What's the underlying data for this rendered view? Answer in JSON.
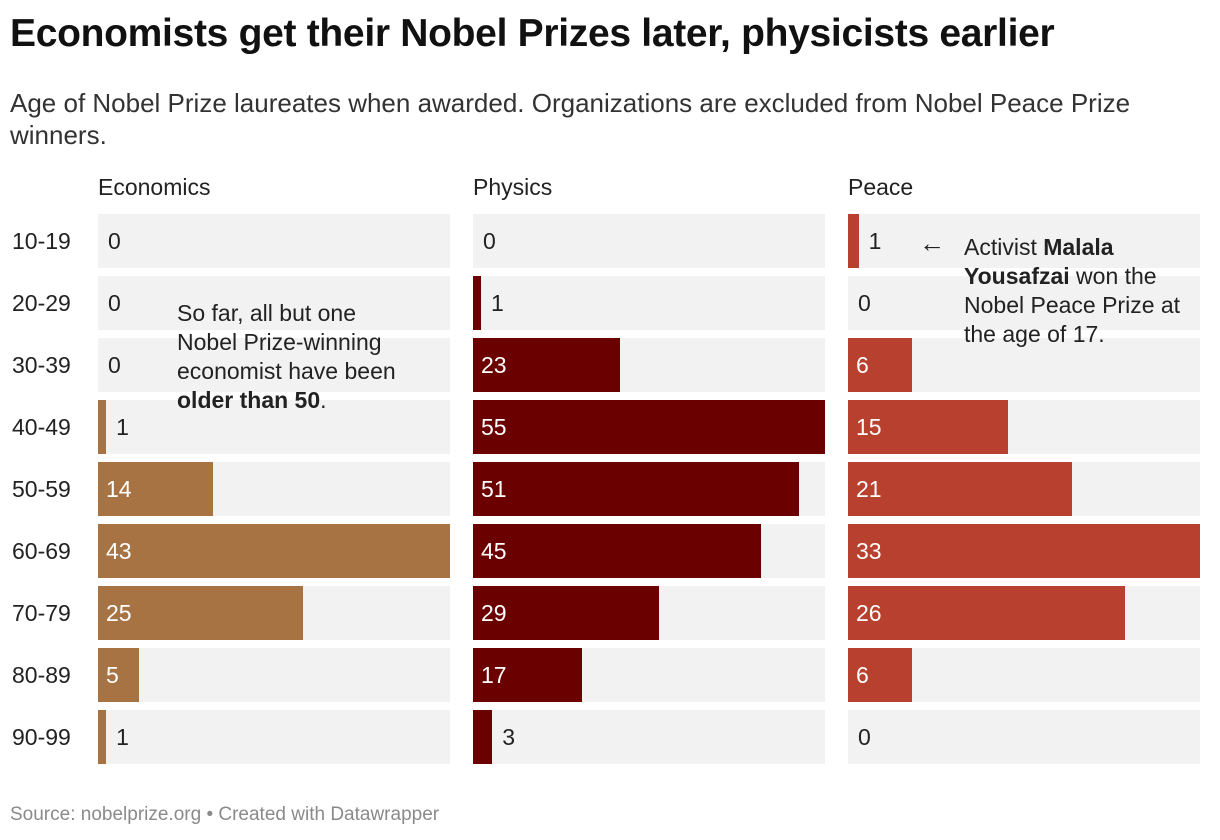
{
  "title": "Economists get their Nobel Prizes later, physicists earlier",
  "subtitle": "Age of Nobel Prize laureates when awarded. Organizations are excluded from Nobel Peace Prize winners.",
  "source": "Source: nobelprize.org • Created with Datawrapper",
  "chart_data": {
    "type": "bar",
    "orientation": "horizontal",
    "categories": [
      "10-19",
      "20-29",
      "30-39",
      "40-49",
      "50-59",
      "60-69",
      "70-79",
      "80-89",
      "90-99"
    ],
    "series": [
      {
        "name": "Economics",
        "color": "#a87343",
        "values": [
          0,
          0,
          0,
          1,
          14,
          43,
          25,
          5,
          1
        ],
        "max": 43
      },
      {
        "name": "Physics",
        "color": "#6b0000",
        "values": [
          0,
          1,
          23,
          55,
          51,
          45,
          29,
          17,
          3
        ],
        "max": 55
      },
      {
        "name": "Peace",
        "color": "#b8402e",
        "values": [
          1,
          0,
          6,
          15,
          21,
          33,
          26,
          6,
          0
        ],
        "max": 33
      }
    ],
    "annotations": {
      "economics": {
        "before": "So far, all but one Nobel Prize-winning economist have been ",
        "bold": "older than 50",
        "after": "."
      },
      "peace": {
        "arrow": "←",
        "before": "Activist ",
        "bold": "Malala Yousafzai",
        "after": " won the Nobel Peace Prize at the age of 17."
      }
    }
  }
}
